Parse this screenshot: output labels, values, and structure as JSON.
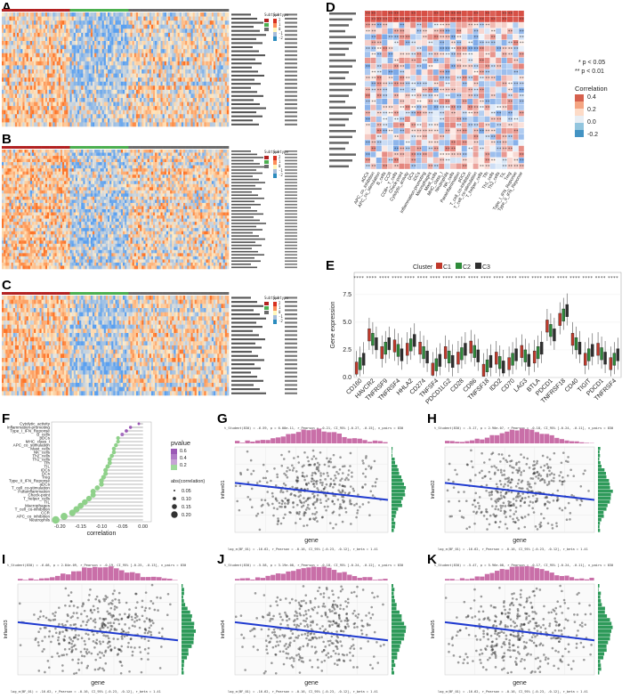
{
  "panels": {
    "A": "A",
    "B": "B",
    "C": "C",
    "D": "D",
    "E": "E",
    "F": "F",
    "G": "G",
    "H": "H",
    "I": "I",
    "J": "J",
    "K": "K"
  },
  "heatmap_A": {
    "legend_title": "Subtype",
    "legend_title2": "Subtype",
    "subtype_colors": [
      "#b22222",
      "#4caf50",
      "#6b6b6b"
    ],
    "scale_ticks": [
      "2",
      "1",
      "0",
      "-1",
      "-2"
    ]
  },
  "heatmap_B": {
    "legend_title": "Subtype",
    "legend_title2": "Subtype",
    "scale_ticks": [
      "2",
      "1",
      "0",
      "-1",
      "-2"
    ]
  },
  "heatmap_C": {
    "legend_title": "Subtype",
    "legend_title2": "Subtype",
    "scale_ticks": [
      "2",
      "1",
      "0",
      "-1",
      "-2"
    ]
  },
  "panel_D": {
    "legend_sig1": "* p < 0.05",
    "legend_sig2": "** p < 0.01",
    "legend_title": "Correlation",
    "legend_ticks": [
      "0.4",
      "0.2",
      "0.0",
      "-0.2"
    ],
    "x_labels": [
      "aDCs",
      "APC_co_inhibition",
      "APC_co_stimulation",
      "B_cells",
      "CCR",
      "CD8+_T_cells",
      "Check-point",
      "Cytolytic_activity",
      "DCs",
      "iDCs",
      "Inflammation-promoting",
      "Macrophages",
      "Mast_cells",
      "MHC_class_I",
      "Neutrophils",
      "NK_cells",
      "Parainflammation",
      "pDCs",
      "T_cell_co-inhibition",
      "T_cell_co-stimulation",
      "T_helper_cells",
      "Tfh",
      "Th1_cells",
      "Th2_cells",
      "TIL",
      "Treg",
      "Type_I_IFN_Reponse",
      "Type_II_IFN_Reponse"
    ]
  },
  "panel_E": {
    "legend_title": "Cluster",
    "clusters": [
      "C1",
      "C2",
      "C3"
    ],
    "cluster_colors": [
      "#c0392b",
      "#2e8b3a",
      "#2f2f2f"
    ],
    "ylabel": "Gene expression",
    "yticks": [
      "7.5",
      "5.0",
      "2.5",
      "0.0"
    ],
    "sig_marks": "****",
    "genes": [
      "CD160",
      "HAVCR2",
      "TNFRSF9",
      "TNFRSF4",
      "HHLA2",
      "CD274",
      "TNFSF4",
      "PDCD1LG2",
      "CD28",
      "CD86",
      "TNFSF18",
      "IDO2",
      "CD70",
      "LAG3",
      "BTLA",
      "PDCD1",
      "TNFRSF18",
      "CD40",
      "TIGIT",
      "PDCD1",
      "TNFRSF4"
    ]
  },
  "panel_F": {
    "xlabel": "correlation",
    "xticks": [
      "-0.20",
      "-0.15",
      "-0.10",
      "-0.05",
      "0.00"
    ],
    "pvalue_title": "pvalue",
    "pvalue_ticks": [
      "0.6",
      "0.4",
      "0.2"
    ],
    "abs_title": "abs(correlation)",
    "abs_ticks": [
      "0.05",
      "0.10",
      "0.15",
      "0.20"
    ],
    "items": [
      "Cytolytic_activity",
      "Inflammation-promoting",
      "Type_I_IFN_Reponse",
      "B_cells",
      "pDCs",
      "MHC_class_I",
      "APC_co_stimulation",
      "Mast_cells",
      "NK_cells",
      "Th2_cells",
      "Th1_cells",
      "Tfh",
      "TIL",
      "iDCs",
      "DCs",
      "Treg",
      "Type_II_IFN_Reponse",
      "aDCs",
      "T_cell_co-stimulation",
      "Parainflammation",
      "Check-point",
      "T_helper_cells",
      "TIL",
      "Macrophages",
      "T_cell_co-inhibition",
      "CCR",
      "APC_co_inhibition",
      "Neutrophils"
    ],
    "correlations": [
      -0.01,
      -0.03,
      -0.04,
      -0.05,
      -0.06,
      -0.06,
      -0.065,
      -0.07,
      -0.07,
      -0.075,
      -0.08,
      -0.08,
      -0.085,
      -0.09,
      -0.09,
      -0.095,
      -0.1,
      -0.1,
      -0.11,
      -0.12,
      -0.12,
      -0.13,
      -0.14,
      -0.15,
      -0.16,
      -0.17,
      -0.19,
      -0.21
    ],
    "pvalues": [
      0.7,
      0.55,
      0.45,
      0.3,
      0.2,
      0.15,
      0.1,
      0.08,
      0.05,
      0.04,
      0.03,
      0.02,
      0.02,
      0.01,
      0.01,
      0.01,
      0.0,
      0.0,
      0.0,
      0.0,
      0.0,
      0.0,
      0.0,
      0.0,
      0.0,
      0.0,
      0.0,
      0.0
    ]
  },
  "scatter": {
    "xlabel": "gene",
    "ylabel_G": "Inflam01",
    "ylabel_H": "Inflam02",
    "ylabel_I": "Inflam03",
    "ylabel_J": "Inflam04",
    "ylabel_K": "Inflam05",
    "subtitle_G": "t_Student(830) = -6.59, p = 6.08e-11, r_Pearson = -0.21, CI_95% [-0.27, -0.15], n_pairs = 830",
    "subtitle_H": "t_Student(830) = -5.17, p = 2.90e-07, r_Pearson = -0.18, CI_95% [-0.24, -0.11], n_pairs = 830",
    "subtitle_I": "t_Student(830) = -6.08, p = 2.84e-09, r_Pearson = -0.19, CI_95% [-0.25, -0.13], n_pairs = 830",
    "subtitle_J": "t_Student(830) = -5.58, p = 3.19e-08, r_Pearson = -0.18, CI_95% [-0.24, -0.12], n_pairs = 830",
    "subtitle_K": "t_Student(830) = -5.47, p = 5.96e-08, r_Pearson = -0.17, CI_95% [-0.24, -0.11], n_pairs = 830",
    "caption": "log_e(BF_01) = -16.62, r_Pearson = -0.16, CI_95% [-0.23, -0.12], r_beta = 1.41"
  }
}
